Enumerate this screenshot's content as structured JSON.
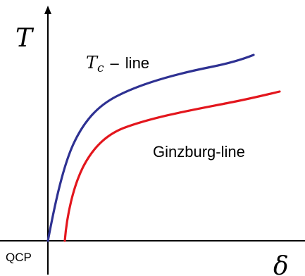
{
  "axes": {
    "y_label": "T",
    "x_label": "δ",
    "origin_label": "QCP"
  },
  "curves": {
    "tc": {
      "label_symbol": "T",
      "label_subscript": "c",
      "label_dash": "–",
      "label_text": "line",
      "color": "#2e3192"
    },
    "ginzburg": {
      "label": "Ginzburg-line",
      "color": "#e3161d"
    }
  },
  "colors": {
    "axis": "#000000",
    "background": "#ffffff"
  }
}
